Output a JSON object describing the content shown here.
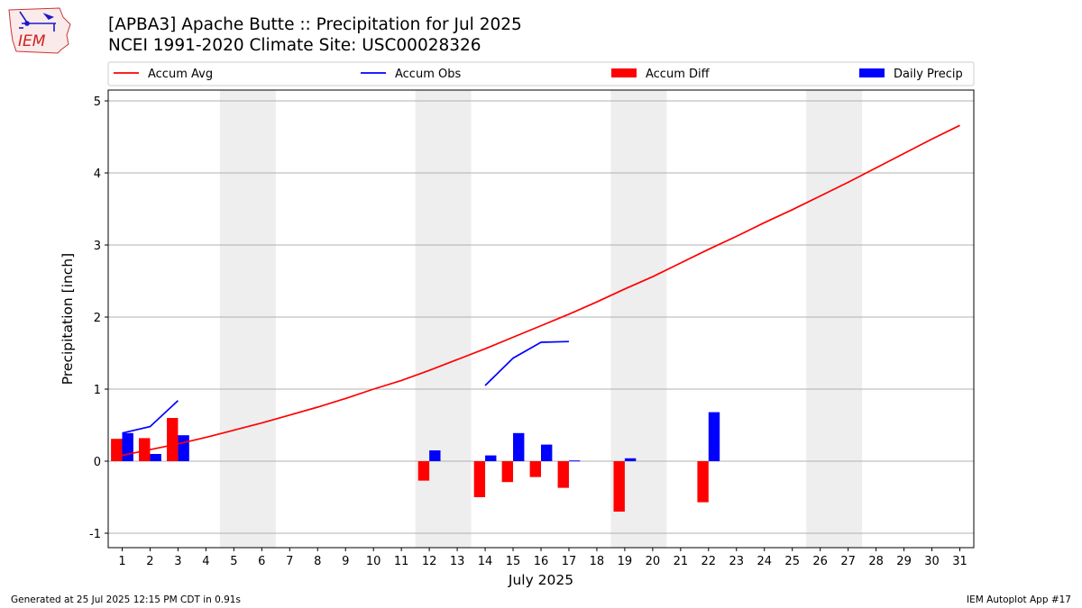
{
  "logo": {
    "text": "IEM"
  },
  "chart_data": {
    "type": "bar+line",
    "title": "[APBA3] Apache Butte :: Precipitation for Jul 2025",
    "subtitle": "NCEI 1991-2020 Climate Site: USC00028326",
    "xlabel": "July 2025",
    "ylabel": "Precipitation [inch]",
    "ylim": [
      -1.2,
      5.15
    ],
    "xlim": [
      0.5,
      31.5
    ],
    "yticks": [
      -1,
      0,
      1,
      2,
      3,
      4,
      5
    ],
    "days": [
      1,
      2,
      3,
      4,
      5,
      6,
      7,
      8,
      9,
      10,
      11,
      12,
      13,
      14,
      15,
      16,
      17,
      18,
      19,
      20,
      21,
      22,
      23,
      24,
      25,
      26,
      27,
      28,
      29,
      30,
      31
    ],
    "weekend_bands": [
      [
        4.5,
        6.5
      ],
      [
        11.5,
        13.5
      ],
      [
        18.5,
        20.5
      ],
      [
        25.5,
        27.5
      ]
    ],
    "grid": "horizontal",
    "legend": [
      "Accum Avg",
      "Accum Obs",
      "Accum Diff",
      "Daily Precip"
    ],
    "colors": {
      "avg": "#ff0000",
      "obs": "#0000ff",
      "diff": "#ff0000",
      "daily": "#0000ff",
      "weekend": "#eeeeee"
    },
    "series": [
      {
        "name": "Accum Avg",
        "kind": "line",
        "values": [
          0.08,
          0.16,
          0.24,
          0.33,
          0.43,
          0.53,
          0.64,
          0.75,
          0.87,
          1.0,
          1.12,
          1.26,
          1.41,
          1.56,
          1.72,
          1.88,
          2.04,
          2.21,
          2.39,
          2.56,
          2.75,
          2.94,
          3.12,
          3.31,
          3.49,
          3.68,
          3.87,
          4.07,
          4.27,
          4.47,
          4.66
        ]
      },
      {
        "name": "Accum Obs",
        "kind": "line",
        "values": [
          0.39,
          0.48,
          0.84,
          null,
          null,
          null,
          null,
          null,
          null,
          null,
          null,
          null,
          null,
          1.05,
          1.43,
          1.65,
          1.66,
          null,
          null,
          null,
          null,
          null,
          null,
          null,
          null,
          null,
          null,
          null,
          null,
          null,
          null
        ]
      },
      {
        "name": "Accum Diff",
        "kind": "bar",
        "values": [
          0.31,
          0.32,
          0.6,
          null,
          null,
          null,
          null,
          null,
          null,
          null,
          null,
          -0.27,
          null,
          -0.5,
          -0.29,
          -0.22,
          -0.37,
          null,
          -0.7,
          null,
          null,
          -0.57,
          null,
          null,
          null,
          null,
          null,
          null,
          null,
          null,
          null
        ]
      },
      {
        "name": "Daily Precip",
        "kind": "bar",
        "values": [
          0.39,
          0.1,
          0.36,
          null,
          null,
          null,
          null,
          null,
          null,
          null,
          null,
          0.15,
          null,
          0.08,
          0.39,
          0.23,
          0.01,
          null,
          0.04,
          null,
          null,
          0.68,
          null,
          null,
          null,
          null,
          null,
          null,
          null,
          null,
          null
        ]
      }
    ]
  },
  "footer": {
    "left": "Generated at 25 Jul 2025 12:15 PM CDT in 0.91s",
    "right": "IEM Autoplot App #17"
  }
}
